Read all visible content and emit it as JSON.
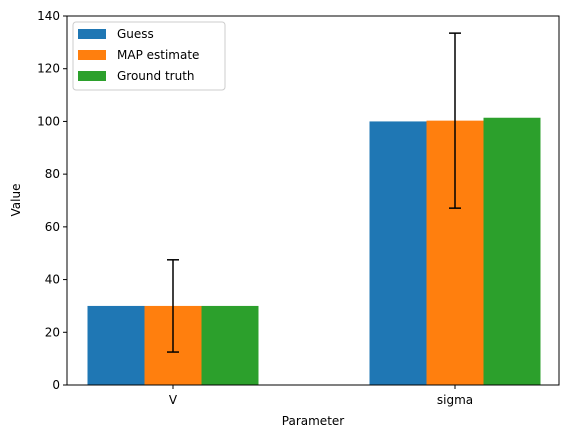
{
  "chart_data": {
    "type": "bar",
    "categories": [
      "V",
      "sigma"
    ],
    "series": [
      {
        "name": "Guess",
        "values": [
          30,
          100
        ],
        "color": "#1f77b4"
      },
      {
        "name": "MAP estimate",
        "values": [
          30,
          100.3
        ],
        "color": "#ff7f0e",
        "error": [
          17.5,
          33.2
        ]
      },
      {
        "name": "Ground truth",
        "values": [
          30,
          101.4
        ],
        "color": "#2ca02c"
      }
    ],
    "xlabel": "Parameter",
    "ylabel": "Value",
    "ylim": [
      0,
      140
    ],
    "yticks": [
      0,
      20,
      40,
      60,
      80,
      100,
      120,
      140
    ],
    "legend": "top-left",
    "grid": false
  }
}
